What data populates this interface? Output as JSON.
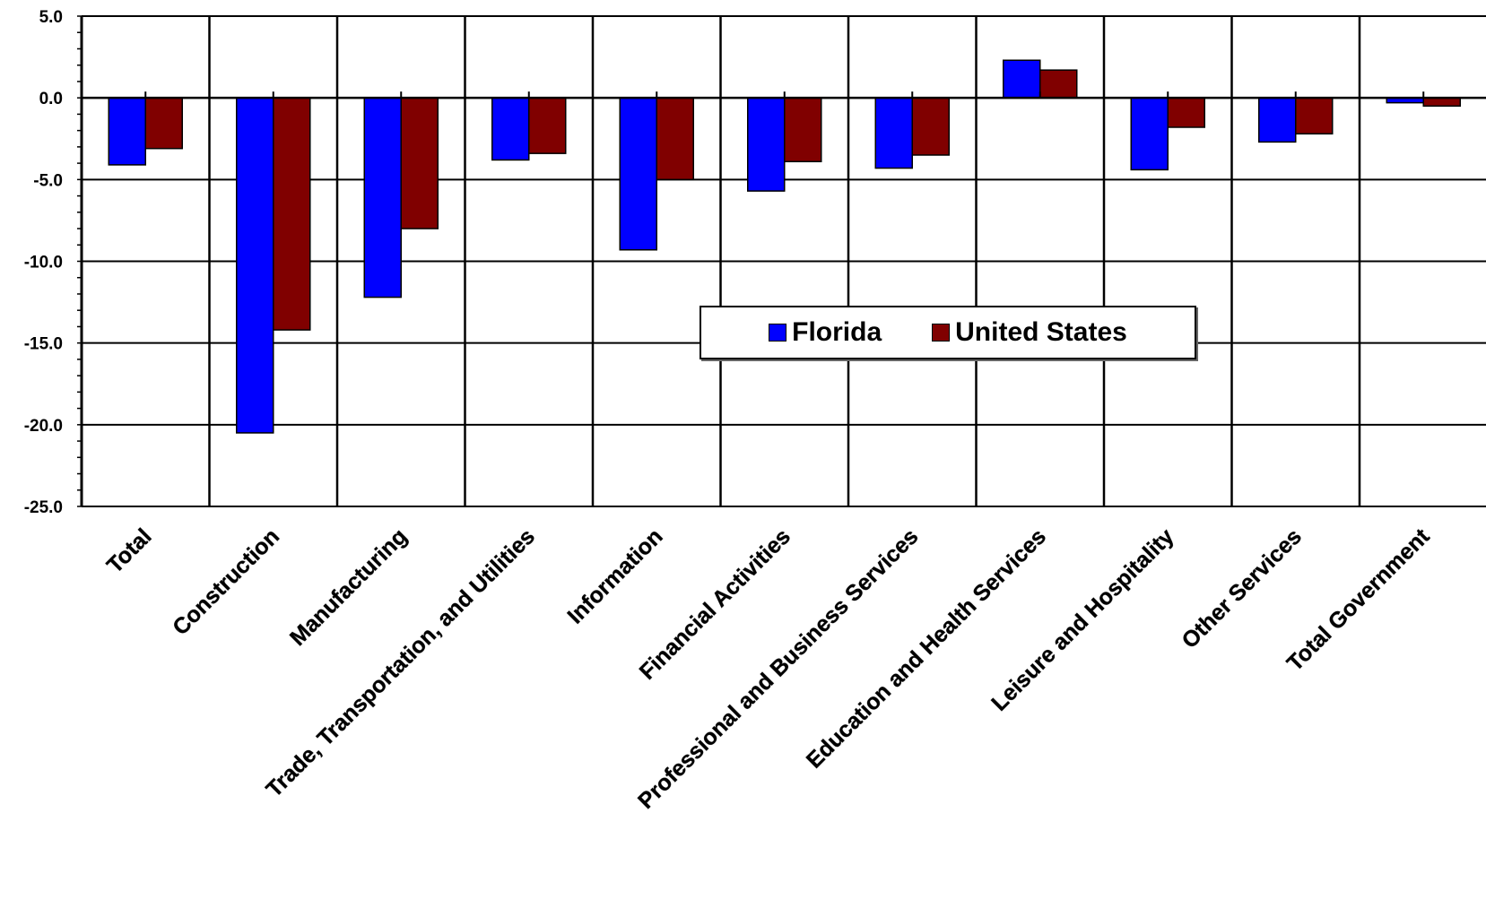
{
  "chart_data": {
    "type": "bar",
    "title": "",
    "xlabel": "",
    "ylabel": "",
    "ylim": [
      -25,
      5
    ],
    "y_ticks": [
      "5.0",
      "0.0",
      "-5.0",
      "-10.0",
      "-15.0",
      "-20.0",
      "-25.0"
    ],
    "grid": true,
    "legend_position": "center",
    "categories": [
      "Total",
      "Construction",
      "Manufacturing",
      "Trade, Transportation, and Utilities",
      "Information",
      "Financial Activities",
      "Professional and Business Services",
      "Education and Health Services",
      "Leisure and Hospitality",
      "Other Services",
      "Total Government"
    ],
    "series": [
      {
        "name": "Florida",
        "color": "#0000ff",
        "values": [
          -4.1,
          -20.5,
          -12.2,
          -3.8,
          -9.3,
          -5.7,
          -4.3,
          2.3,
          -4.4,
          -2.7,
          -0.3
        ]
      },
      {
        "name": "United States",
        "color": "#800000",
        "values": [
          -3.1,
          -14.2,
          -8.0,
          -3.4,
          -5.0,
          -3.9,
          -3.5,
          1.7,
          -1.8,
          -2.2,
          -0.5
        ]
      }
    ]
  }
}
